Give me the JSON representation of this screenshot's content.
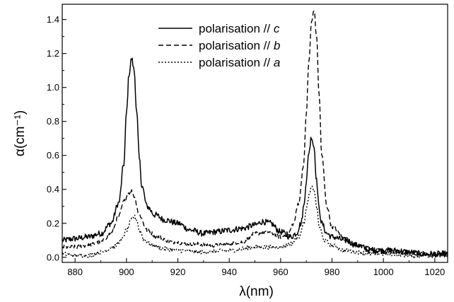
{
  "chart_data": {
    "type": "line",
    "xlabel": "λ(nm)",
    "ylabel": "α(cm⁻¹)",
    "xlim": [
      875,
      1025
    ],
    "ylim": [
      -0.03,
      1.49
    ],
    "x_ticks": [
      880,
      900,
      920,
      940,
      960,
      980,
      1000,
      1020
    ],
    "y_ticks": [
      0.0,
      0.2,
      0.4,
      0.6,
      0.8,
      1.0,
      1.2,
      1.4
    ],
    "x_tick_labels": [
      "880",
      "900",
      "920",
      "940",
      "960",
      "980",
      "1000",
      "1020"
    ],
    "y_tick_labels": [
      "0.0",
      "0.2",
      "0.4",
      "0.6",
      "0.8",
      "1.0",
      "1.2",
      "1.4"
    ],
    "legend_placement": "top-center",
    "grid": false,
    "series": [
      {
        "name": "polarisation // c",
        "label_prefix": "polarisation // ",
        "label_axis": "c",
        "line_style": "solid",
        "x": [
          875,
          880,
          885,
          890,
          894,
          897,
          899,
          900,
          901,
          902,
          903,
          904,
          905,
          906,
          908,
          911,
          915,
          920,
          925,
          930,
          935,
          940,
          945,
          950,
          953,
          956,
          960,
          964,
          966,
          968,
          969,
          970,
          971,
          972,
          973,
          974,
          975,
          976,
          978,
          980,
          985,
          990,
          995,
          1000,
          1005,
          1010,
          1015,
          1020,
          1025
        ],
        "y": [
          0.1,
          0.11,
          0.12,
          0.14,
          0.2,
          0.32,
          0.55,
          0.85,
          1.08,
          1.17,
          1.1,
          0.85,
          0.58,
          0.42,
          0.3,
          0.25,
          0.22,
          0.2,
          0.16,
          0.14,
          0.15,
          0.16,
          0.17,
          0.19,
          0.21,
          0.2,
          0.15,
          0.12,
          0.14,
          0.2,
          0.3,
          0.45,
          0.62,
          0.71,
          0.65,
          0.45,
          0.28,
          0.2,
          0.14,
          0.12,
          0.1,
          0.07,
          0.04,
          0.04,
          0.04,
          0.03,
          0.02,
          0.02,
          0.02
        ]
      },
      {
        "name": "polarisation // b",
        "label_prefix": "polarisation // ",
        "label_axis": "b",
        "line_style": "dashed",
        "x": [
          875,
          880,
          885,
          890,
          894,
          897,
          899,
          901,
          902,
          903,
          905,
          908,
          912,
          918,
          925,
          935,
          945,
          950,
          955,
          960,
          963,
          965,
          967,
          969,
          970,
          971,
          972,
          973,
          974,
          975,
          976,
          978,
          980,
          985,
          990,
          995,
          1000,
          1005,
          1010,
          1015,
          1020,
          1025
        ],
        "y": [
          0.06,
          0.06,
          0.07,
          0.09,
          0.14,
          0.24,
          0.33,
          0.38,
          0.39,
          0.36,
          0.25,
          0.16,
          0.12,
          0.09,
          0.08,
          0.07,
          0.09,
          0.14,
          0.15,
          0.12,
          0.14,
          0.2,
          0.32,
          0.55,
          0.85,
          1.15,
          1.38,
          1.46,
          1.3,
          0.95,
          0.6,
          0.3,
          0.18,
          0.11,
          0.07,
          0.05,
          0.04,
          0.03,
          0.03,
          0.02,
          0.02,
          0.02
        ]
      },
      {
        "name": "polarisation // a",
        "label_prefix": "polarisation // ",
        "label_axis": "a",
        "line_style": "dotted",
        "x": [
          875,
          880,
          885,
          890,
          895,
          898,
          900,
          902,
          903,
          904,
          905,
          907,
          910,
          915,
          920,
          930,
          940,
          950,
          955,
          960,
          964,
          967,
          969,
          970,
          971,
          972,
          973,
          974,
          975,
          977,
          980,
          985,
          990,
          995,
          1000,
          1005,
          1010,
          1015,
          1020,
          1025
        ],
        "y": [
          0.02,
          0.01,
          0.01,
          0.03,
          0.06,
          0.1,
          0.16,
          0.22,
          0.24,
          0.22,
          0.16,
          0.1,
          0.07,
          0.05,
          0.04,
          0.03,
          0.04,
          0.06,
          0.06,
          0.06,
          0.08,
          0.12,
          0.2,
          0.28,
          0.36,
          0.41,
          0.4,
          0.3,
          0.18,
          0.1,
          0.07,
          0.04,
          0.03,
          0.02,
          0.02,
          0.02,
          0.01,
          0.01,
          0.01,
          0.01
        ]
      }
    ]
  }
}
